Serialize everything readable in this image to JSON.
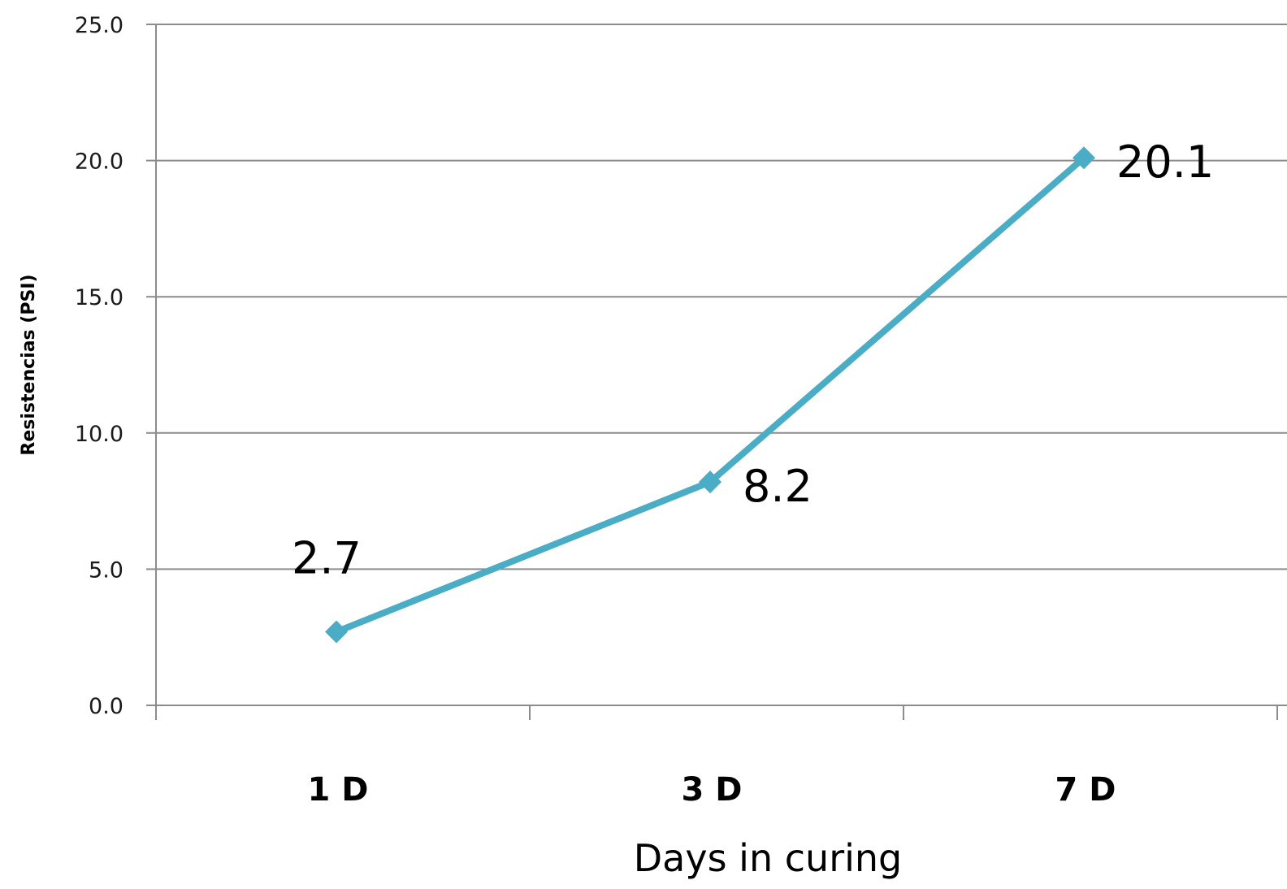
{
  "chart_data": {
    "type": "line",
    "categories": [
      "1 D",
      "3 D",
      "7 D"
    ],
    "series": [
      {
        "values": [
          2.7,
          8.2,
          20.1
        ]
      }
    ],
    "data_labels": [
      "2.7",
      "8.2",
      "20.1"
    ],
    "y_ticks": [
      "0.0",
      "5.0",
      "10.0",
      "15.0",
      "20.0",
      "25.0"
    ],
    "ylim": [
      0,
      25
    ],
    "xlabel": "Days in curing",
    "ylabel": "Resistencias (PSI)",
    "grid": true,
    "legend": "none",
    "line_color": "#4bacc6",
    "marker": "diamond"
  }
}
